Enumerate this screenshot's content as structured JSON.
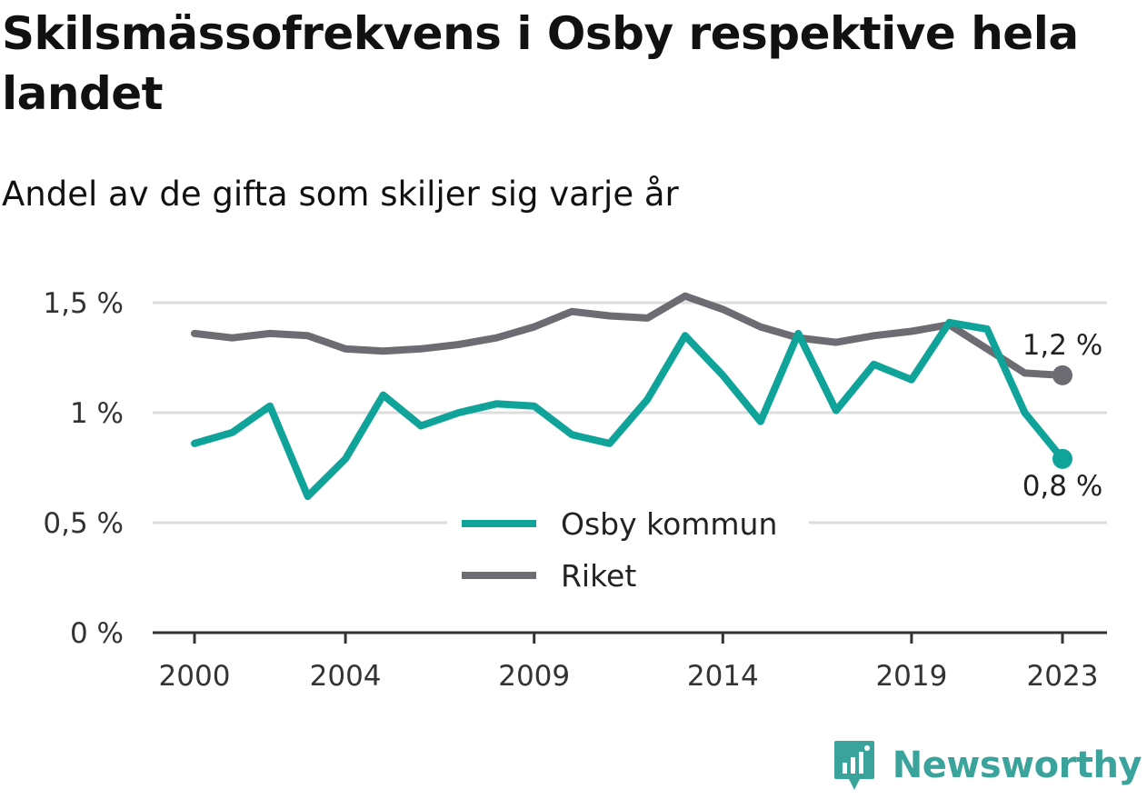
{
  "header": {
    "title": "Skilsmässofrekvens i Osby respektive hela landet",
    "subtitle": "Andel av de gifta som skiljer sig varje år"
  },
  "brand": {
    "name": "Newsworthy",
    "color": "#3aa39b",
    "icon": "newsworthy-logo-icon"
  },
  "chart_data": {
    "type": "line",
    "x": [
      2000,
      2001,
      2002,
      2003,
      2004,
      2005,
      2006,
      2007,
      2008,
      2009,
      2010,
      2011,
      2012,
      2013,
      2014,
      2015,
      2016,
      2017,
      2018,
      2019,
      2020,
      2021,
      2022,
      2023
    ],
    "series": [
      {
        "name": "Osby kommun",
        "color": "#0fa39a",
        "values": [
          0.86,
          0.91,
          1.03,
          0.62,
          0.79,
          1.08,
          0.94,
          1.0,
          1.04,
          1.03,
          0.9,
          0.86,
          1.06,
          1.35,
          1.17,
          0.96,
          1.36,
          1.01,
          1.22,
          1.15,
          1.41,
          1.38,
          1.0,
          0.79
        ],
        "end_label": "0,8 %"
      },
      {
        "name": "Riket",
        "color": "#6d6c72",
        "values": [
          1.36,
          1.34,
          1.36,
          1.35,
          1.29,
          1.28,
          1.29,
          1.31,
          1.34,
          1.39,
          1.46,
          1.44,
          1.43,
          1.53,
          1.47,
          1.39,
          1.34,
          1.32,
          1.35,
          1.37,
          1.4,
          1.29,
          1.18,
          1.17
        ],
        "end_label": "1,2 %"
      }
    ],
    "x_ticks": [
      2000,
      2004,
      2009,
      2014,
      2019,
      2023
    ],
    "x_tick_labels": [
      "2000",
      "2004",
      "2009",
      "2014",
      "2019",
      "2023"
    ],
    "y_ticks": [
      0,
      0.5,
      1,
      1.5
    ],
    "y_tick_labels": [
      "0 %",
      "0,5 %",
      "1 %",
      "1,5 %"
    ],
    "ylim": [
      0,
      1.5
    ],
    "xlim": [
      2000,
      2023
    ],
    "grid": true,
    "legend": "bottom-center",
    "xlabel": "",
    "ylabel": ""
  }
}
